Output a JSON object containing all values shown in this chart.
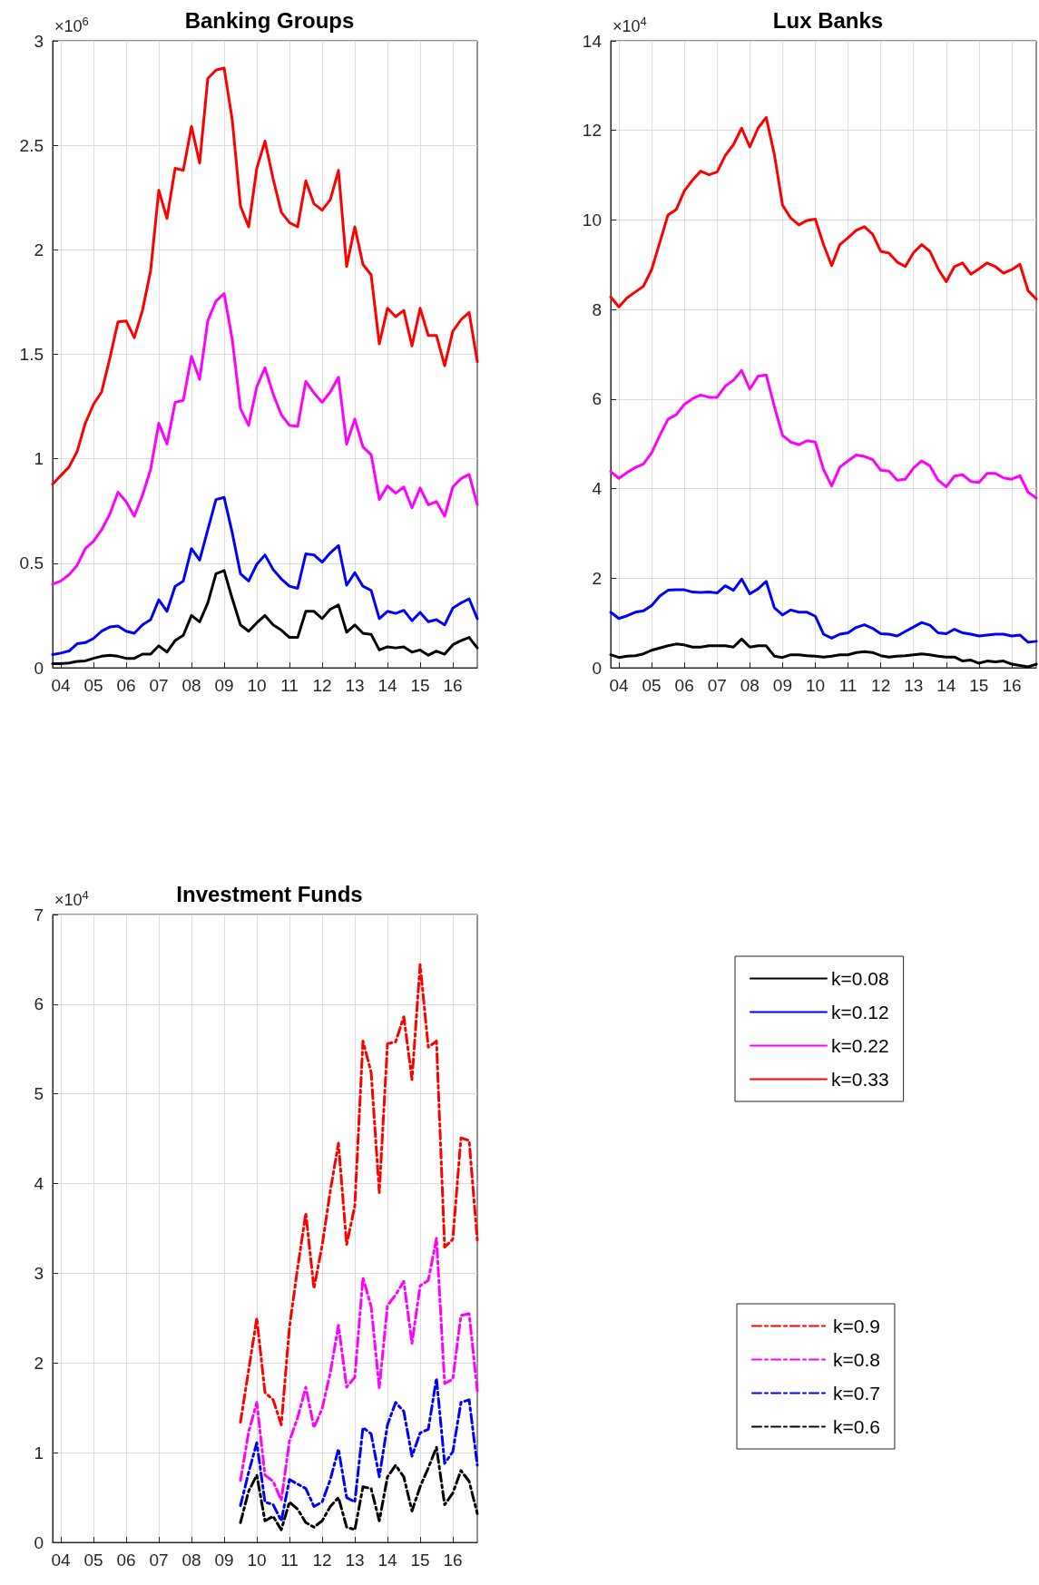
{
  "chart_data": [
    {
      "type": "line",
      "title": "Banking Groups",
      "annotations": [
        "×10$^{6}$"
      ],
      "x": [
        2003.75,
        2004,
        2004.25,
        2004.5,
        2004.75,
        2005,
        2005.25,
        2005.5,
        2005.75,
        2006,
        2006.25,
        2006.5,
        2006.75,
        2007,
        2007.25,
        2007.5,
        2007.75,
        2008,
        2008.25,
        2008.5,
        2008.75,
        2009,
        2009.25,
        2009.5,
        2009.75,
        2010,
        2010.25,
        2010.5,
        2010.75,
        2011,
        2011.25,
        2011.5,
        2011.75,
        2012,
        2012.25,
        2012.5,
        2012.75,
        2013,
        2013.25,
        2013.5,
        2013.75,
        2014,
        2014.25,
        2014.5,
        2014.75,
        2015,
        2015.25,
        2015.5,
        2015.75,
        2016,
        2016.25,
        2016.5,
        2016.75
      ],
      "series": [
        {
          "name": "k=0.08",
          "color": "#000000",
          "values": [
            0.02,
            0.02,
            0.023,
            0.03,
            0.033,
            0.045,
            0.055,
            0.06,
            0.055,
            0.045,
            0.045,
            0.065,
            0.065,
            0.105,
            0.075,
            0.13,
            0.155,
            0.25,
            0.22,
            0.31,
            0.45,
            0.465,
            0.33,
            0.205,
            0.175,
            0.215,
            0.25,
            0.205,
            0.18,
            0.145,
            0.145,
            0.27,
            0.27,
            0.235,
            0.28,
            0.3,
            0.17,
            0.205,
            0.165,
            0.16,
            0.085,
            0.1,
            0.095,
            0.1,
            0.075,
            0.085,
            0.06,
            0.08,
            0.065,
            0.11,
            0.13,
            0.145,
            0.095
          ]
        },
        {
          "name": "k=0.12",
          "color": "#0000ff",
          "values": [
            0.063,
            0.07,
            0.08,
            0.115,
            0.12,
            0.14,
            0.175,
            0.195,
            0.2,
            0.175,
            0.165,
            0.205,
            0.23,
            0.325,
            0.27,
            0.39,
            0.415,
            0.57,
            0.515,
            0.66,
            0.805,
            0.815,
            0.645,
            0.45,
            0.415,
            0.495,
            0.54,
            0.47,
            0.425,
            0.39,
            0.38,
            0.545,
            0.54,
            0.505,
            0.55,
            0.585,
            0.395,
            0.455,
            0.39,
            0.37,
            0.235,
            0.27,
            0.26,
            0.275,
            0.225,
            0.265,
            0.22,
            0.23,
            0.205,
            0.285,
            0.31,
            0.33,
            0.235
          ]
        },
        {
          "name": "k=0.22",
          "color": "#ff00ff",
          "values": [
            0.4,
            0.415,
            0.445,
            0.49,
            0.57,
            0.605,
            0.66,
            0.735,
            0.84,
            0.795,
            0.725,
            0.825,
            0.95,
            1.17,
            1.07,
            1.27,
            1.28,
            1.49,
            1.38,
            1.66,
            1.755,
            1.79,
            1.57,
            1.24,
            1.16,
            1.345,
            1.435,
            1.31,
            1.21,
            1.16,
            1.155,
            1.37,
            1.315,
            1.27,
            1.32,
            1.39,
            1.07,
            1.19,
            1.057,
            1.02,
            0.805,
            0.87,
            0.835,
            0.865,
            0.765,
            0.86,
            0.78,
            0.795,
            0.725,
            0.865,
            0.905,
            0.925,
            0.78
          ]
        },
        {
          "name": "k=0.33",
          "color": "#ff0000",
          "values": [
            0.878,
            0.92,
            0.96,
            1.035,
            1.17,
            1.26,
            1.32,
            1.48,
            1.655,
            1.66,
            1.58,
            1.71,
            1.9,
            2.285,
            2.15,
            2.39,
            2.38,
            2.59,
            2.415,
            2.82,
            2.86,
            2.87,
            2.62,
            2.21,
            2.11,
            2.39,
            2.52,
            2.34,
            2.18,
            2.13,
            2.11,
            2.33,
            2.22,
            2.19,
            2.24,
            2.38,
            1.92,
            2.11,
            1.93,
            1.88,
            1.55,
            1.72,
            1.68,
            1.71,
            1.54,
            1.72,
            1.59,
            1.59,
            1.445,
            1.61,
            1.665,
            1.7,
            1.465
          ]
        }
      ],
      "xlim": [
        2003.75,
        2016.75
      ],
      "xticks": [
        {
          "value": 2004,
          "label": "04"
        },
        {
          "value": 2005,
          "label": "05"
        },
        {
          "value": 2006,
          "label": "06"
        },
        {
          "value": 2007,
          "label": "07"
        },
        {
          "value": 2008,
          "label": "08"
        },
        {
          "value": 2009,
          "label": "09"
        },
        {
          "value": 2010,
          "label": "10"
        },
        {
          "value": 2011,
          "label": "11"
        },
        {
          "value": 2012,
          "label": "12"
        },
        {
          "value": 2013,
          "label": "13"
        },
        {
          "value": 2014,
          "label": "14"
        },
        {
          "value": 2015,
          "label": "15"
        },
        {
          "value": 2016,
          "label": "16"
        }
      ],
      "ylim": [
        0,
        3
      ],
      "yticks": [
        0,
        0.5,
        1,
        1.5,
        2,
        2.5,
        3
      ],
      "grid": true,
      "legend": "right",
      "line_style": "solid"
    },
    {
      "type": "line",
      "title": "Lux Banks",
      "annotations": [
        "×10$^{4}$"
      ],
      "x": [
        2003.75,
        2004,
        2004.25,
        2004.5,
        2004.75,
        2005,
        2005.25,
        2005.5,
        2005.75,
        2006,
        2006.25,
        2006.5,
        2006.75,
        2007,
        2007.25,
        2007.5,
        2007.75,
        2008,
        2008.25,
        2008.5,
        2008.75,
        2009,
        2009.25,
        2009.5,
        2009.75,
        2010,
        2010.25,
        2010.5,
        2010.75,
        2011,
        2011.25,
        2011.5,
        2011.75,
        2012,
        2012.25,
        2012.5,
        2012.75,
        2013,
        2013.25,
        2013.5,
        2013.75,
        2014,
        2014.25,
        2014.5,
        2014.75,
        2015,
        2015.25,
        2015.5,
        2015.75,
        2016,
        2016.25,
        2016.5,
        2016.75
      ],
      "series": [
        {
          "color": "#000000",
          "values": [
            0.29,
            0.23,
            0.26,
            0.27,
            0.31,
            0.39,
            0.44,
            0.49,
            0.53,
            0.51,
            0.46,
            0.46,
            0.49,
            0.49,
            0.49,
            0.46,
            0.64,
            0.46,
            0.49,
            0.49,
            0.26,
            0.23,
            0.29,
            0.29,
            0.27,
            0.26,
            0.24,
            0.26,
            0.29,
            0.29,
            0.34,
            0.36,
            0.34,
            0.27,
            0.24,
            0.26,
            0.27,
            0.29,
            0.31,
            0.29,
            0.26,
            0.24,
            0.24,
            0.15,
            0.17,
            0.1,
            0.15,
            0.13,
            0.15,
            0.08,
            0.05,
            0.02,
            0.08
          ]
        },
        {
          "color": "#0000ff",
          "values": [
            1.24,
            1.1,
            1.16,
            1.24,
            1.27,
            1.39,
            1.6,
            1.73,
            1.74,
            1.74,
            1.69,
            1.68,
            1.69,
            1.67,
            1.83,
            1.73,
            1.98,
            1.65,
            1.76,
            1.93,
            1.34,
            1.18,
            1.29,
            1.24,
            1.24,
            1.15,
            0.75,
            0.66,
            0.75,
            0.78,
            0.9,
            0.96,
            0.88,
            0.76,
            0.75,
            0.71,
            0.81,
            0.91,
            1.01,
            0.95,
            0.78,
            0.76,
            0.86,
            0.78,
            0.75,
            0.71,
            0.73,
            0.75,
            0.75,
            0.71,
            0.73,
            0.57,
            0.59
          ]
        },
        {
          "color": "#ff00ff",
          "values": [
            4.38,
            4.23,
            4.36,
            4.47,
            4.55,
            4.8,
            5.19,
            5.55,
            5.65,
            5.88,
            6.01,
            6.09,
            6.04,
            6.04,
            6.29,
            6.42,
            6.64,
            6.22,
            6.51,
            6.54,
            5.83,
            5.19,
            5.04,
            4.98,
            5.07,
            5.04,
            4.43,
            4.06,
            4.48,
            4.62,
            4.75,
            4.72,
            4.65,
            4.41,
            4.39,
            4.19,
            4.21,
            4.46,
            4.62,
            4.51,
            4.19,
            4.04,
            4.28,
            4.31,
            4.16,
            4.14,
            4.34,
            4.34,
            4.24,
            4.21,
            4.29,
            3.92,
            3.79
          ]
        },
        {
          "color": "#ff0000",
          "values": [
            8.28,
            8.06,
            8.26,
            8.39,
            8.52,
            8.89,
            9.5,
            10.11,
            10.23,
            10.65,
            10.89,
            11.09,
            11.01,
            11.07,
            11.44,
            11.68,
            12.05,
            11.63,
            12.05,
            12.29,
            11.46,
            10.33,
            10.04,
            9.89,
            9.99,
            10.02,
            9.45,
            8.98,
            9.45,
            9.6,
            9.77,
            9.85,
            9.68,
            9.3,
            9.26,
            9.06,
            8.96,
            9.27,
            9.45,
            9.3,
            8.91,
            8.62,
            8.96,
            9.04,
            8.79,
            8.91,
            9.04,
            8.96,
            8.81,
            8.89,
            9.01,
            8.42,
            8.23
          ]
        }
      ],
      "xlim": [
        2003.75,
        2016.75
      ],
      "xticks": [
        {
          "value": 2004,
          "label": "04"
        },
        {
          "value": 2005,
          "label": "05"
        },
        {
          "value": 2006,
          "label": "06"
        },
        {
          "value": 2007,
          "label": "07"
        },
        {
          "value": 2008,
          "label": "08"
        },
        {
          "value": 2009,
          "label": "09"
        },
        {
          "value": 2010,
          "label": "10"
        },
        {
          "value": 2011,
          "label": "11"
        },
        {
          "value": 2012,
          "label": "12"
        },
        {
          "value": 2013,
          "label": "13"
        },
        {
          "value": 2014,
          "label": "14"
        },
        {
          "value": 2015,
          "label": "15"
        },
        {
          "value": 2016,
          "label": "16"
        }
      ],
      "ylim": [
        0,
        14
      ],
      "yticks": [
        0,
        2,
        4,
        6,
        8,
        10,
        12,
        14
      ],
      "grid": true,
      "line_style": "solid"
    },
    {
      "type": "line",
      "title": "Investment Funds",
      "annotations": [
        "×10$^{4}$"
      ],
      "x": [
        2009.5,
        2009.75,
        2010,
        2010.25,
        2010.5,
        2010.75,
        2011,
        2011.25,
        2011.5,
        2011.75,
        2012,
        2012.25,
        2012.5,
        2012.75,
        2013,
        2013.25,
        2013.5,
        2013.75,
        2014,
        2014.25,
        2014.5,
        2014.75,
        2015,
        2015.25,
        2015.5,
        2015.75,
        2016,
        2016.25,
        2016.5,
        2016.75
      ],
      "series": [
        {
          "name": "k=0.9",
          "color": "#ff0000",
          "values": [
            1.34,
            1.92,
            2.5,
            1.67,
            1.59,
            1.31,
            2.4,
            3.06,
            3.67,
            2.83,
            3.31,
            3.92,
            4.45,
            3.32,
            3.75,
            5.59,
            5.24,
            3.9,
            5.56,
            5.58,
            5.86,
            5.16,
            6.44,
            5.52,
            5.59,
            3.29,
            3.38,
            4.51,
            4.48,
            3.37
          ]
        },
        {
          "name": "k=0.8",
          "color": "#ff00ff",
          "values": [
            0.69,
            1.23,
            1.56,
            0.75,
            0.68,
            0.47,
            1.13,
            1.39,
            1.73,
            1.28,
            1.49,
            1.89,
            2.42,
            1.73,
            1.84,
            2.95,
            2.63,
            1.72,
            2.64,
            2.76,
            2.91,
            2.22,
            2.86,
            2.92,
            3.39,
            1.77,
            1.82,
            2.53,
            2.55,
            1.69
          ]
        },
        {
          "name": "k=0.7",
          "color": "#0000ff",
          "values": [
            0.41,
            0.78,
            1.11,
            0.45,
            0.42,
            0.24,
            0.7,
            0.65,
            0.6,
            0.4,
            0.45,
            0.7,
            1.04,
            0.5,
            0.45,
            1.28,
            1.21,
            0.73,
            1.31,
            1.56,
            1.46,
            0.96,
            1.22,
            1.26,
            1.83,
            0.88,
            1.01,
            1.56,
            1.59,
            0.86
          ]
        },
        {
          "name": "k=0.6",
          "color": "#000000",
          "values": [
            0.22,
            0.57,
            0.75,
            0.24,
            0.29,
            0.14,
            0.45,
            0.37,
            0.22,
            0.17,
            0.24,
            0.4,
            0.5,
            0.17,
            0.14,
            0.62,
            0.6,
            0.24,
            0.73,
            0.86,
            0.73,
            0.35,
            0.62,
            0.83,
            1.06,
            0.42,
            0.55,
            0.8,
            0.68,
            0.32
          ]
        }
      ],
      "xlim": [
        2003.75,
        2016.75
      ],
      "xticks": [
        {
          "value": 2004,
          "label": "04"
        },
        {
          "value": 2005,
          "label": "05"
        },
        {
          "value": 2006,
          "label": "06"
        },
        {
          "value": 2007,
          "label": "07"
        },
        {
          "value": 2008,
          "label": "08"
        },
        {
          "value": 2009,
          "label": "09"
        },
        {
          "value": 2010,
          "label": "10"
        },
        {
          "value": 2011,
          "label": "11"
        },
        {
          "value": 2012,
          "label": "12"
        },
        {
          "value": 2013,
          "label": "13"
        },
        {
          "value": 2014,
          "label": "14"
        },
        {
          "value": 2015,
          "label": "15"
        },
        {
          "value": 2016,
          "label": "16"
        }
      ],
      "ylim": [
        0,
        7
      ],
      "yticks": [
        0,
        1,
        2,
        3,
        4,
        5,
        6,
        7
      ],
      "grid": true,
      "legend": "right",
      "line_style": "dashed"
    }
  ]
}
